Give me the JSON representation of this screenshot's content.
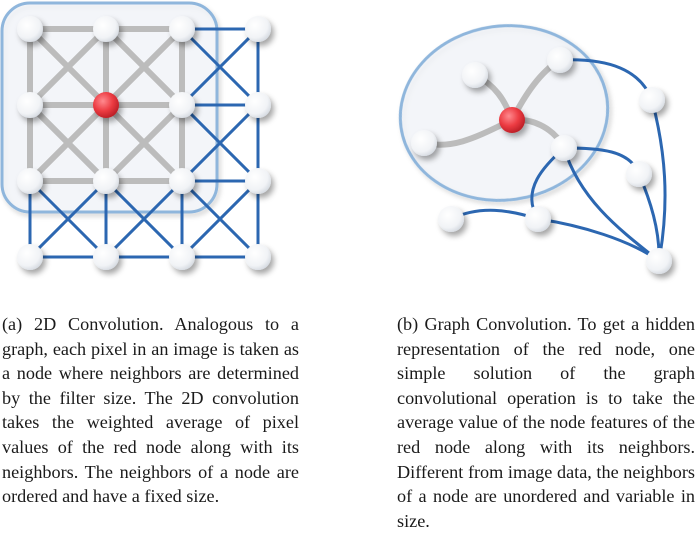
{
  "figure": {
    "colors": {
      "edge_blue": "#2c67b1",
      "edge_gray": "#bcbcbc",
      "region_stroke": "#8fb6dc",
      "red_node": "#e8353c",
      "node_fill": "#f8f9fb"
    }
  },
  "captions": {
    "a": "(a) 2D Convolution. Analogous to a graph, each pixel in an image is taken as a node where neighbors are determined by the filter size. The 2D convolution takes the weighted average of pixel values of the red node along with its neighbors. The neighbors of a node are ordered and have a fixed size.",
    "b": "(b) Graph Convolution. To get a hidden representation of the red node, one simple solution of the graph convolutional operation is to take the average value of the node features of the red node along with its neighbors. Different from image data, the neighbors of a node are unordered and variable in size."
  }
}
